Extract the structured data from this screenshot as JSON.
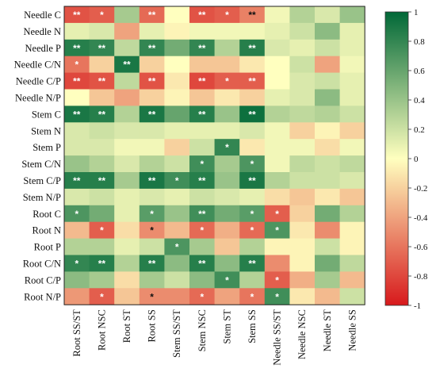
{
  "chart_data": {
    "type": "heatmap",
    "rows": [
      "Needle C",
      "Needle N",
      "Needle P",
      "Needle C/N",
      "Needle C/P",
      "Needle N/P",
      "Stem C",
      "Stem N",
      "Stem P",
      "Stem C/N",
      "Stem C/P",
      "Stem N/P",
      "Root C",
      "Root N",
      "Root P",
      "Root C/N",
      "Root C/P",
      "Root N/P"
    ],
    "columns": [
      "Root SS/ST",
      "Root NSC",
      "Root ST",
      "Root SS",
      "Stem SS/ST",
      "Stem NSC",
      "Stem ST",
      "Stem SS",
      "Needle SS/ST",
      "Needle NSC",
      "Needle ST",
      "Needle SS"
    ],
    "values": [
      [
        -0.75,
        -0.7,
        0.35,
        -0.65,
        0.0,
        -0.75,
        -0.7,
        -0.55,
        0.05,
        0.3,
        0.15,
        0.4
      ],
      [
        0.1,
        0.15,
        -0.4,
        0.1,
        -0.05,
        0.05,
        0.05,
        0.05,
        0.1,
        0.2,
        0.45,
        0.1
      ],
      [
        0.85,
        0.8,
        0.25,
        0.8,
        0.55,
        0.8,
        0.3,
        0.85,
        0.15,
        0.1,
        0.2,
        0.1
      ],
      [
        -0.6,
        -0.2,
        0.9,
        -0.2,
        0.0,
        -0.25,
        -0.25,
        -0.1,
        0.0,
        0.2,
        -0.4,
        0.05
      ],
      [
        -0.8,
        -0.75,
        0.25,
        -0.75,
        -0.1,
        -0.8,
        -0.7,
        -0.7,
        0.0,
        0.15,
        0.2,
        0.1
      ],
      [
        0.0,
        -0.25,
        -0.4,
        -0.2,
        -0.05,
        -0.25,
        -0.1,
        -0.2,
        0.1,
        0.15,
        0.45,
        0.1
      ],
      [
        0.9,
        0.85,
        0.3,
        0.9,
        0.6,
        0.85,
        0.4,
        0.95,
        0.3,
        0.25,
        0.3,
        0.2
      ],
      [
        0.15,
        0.2,
        0.15,
        0.15,
        0.1,
        0.1,
        0.1,
        0.15,
        0.05,
        -0.2,
        -0.05,
        -0.2
      ],
      [
        0.15,
        0.15,
        0.05,
        0.05,
        -0.2,
        0.2,
        0.8,
        -0.1,
        0.05,
        0.05,
        -0.15,
        0.05
      ],
      [
        0.4,
        0.3,
        0.15,
        0.3,
        0.2,
        0.75,
        0.35,
        0.7,
        0.05,
        0.25,
        0.2,
        0.25
      ],
      [
        0.85,
        0.85,
        0.35,
        0.9,
        0.75,
        0.85,
        0.4,
        0.9,
        0.3,
        0.2,
        0.2,
        0.15
      ],
      [
        0.15,
        0.2,
        0.1,
        0.15,
        0.1,
        0.2,
        0.15,
        0.1,
        -0.15,
        -0.25,
        -0.1,
        -0.25
      ],
      [
        0.7,
        0.55,
        0.1,
        0.65,
        0.4,
        0.75,
        0.55,
        0.65,
        -0.7,
        -0.2,
        0.55,
        0.3
      ],
      [
        -0.3,
        -0.7,
        -0.15,
        -0.5,
        -0.3,
        -0.65,
        -0.35,
        -0.65,
        0.7,
        -0.1,
        -0.5,
        -0.05
      ],
      [
        0.3,
        0.3,
        0.1,
        0.2,
        0.7,
        0.35,
        -0.25,
        0.3,
        -0.05,
        -0.05,
        0.2,
        -0.05
      ],
      [
        0.8,
        0.85,
        0.3,
        0.85,
        0.45,
        0.85,
        0.45,
        0.85,
        -0.5,
        -0.05,
        0.55,
        0.25
      ],
      [
        0.45,
        0.35,
        -0.15,
        0.35,
        0.2,
        0.45,
        0.75,
        0.3,
        -0.7,
        -0.35,
        0.35,
        -0.3
      ],
      [
        -0.45,
        -0.7,
        -0.25,
        -0.5,
        -0.5,
        -0.65,
        -0.4,
        -0.6,
        0.75,
        -0.1,
        -0.3,
        0.2
      ]
    ],
    "significance": [
      [
        "**",
        "*",
        "",
        "**",
        "",
        "**",
        "*",
        "**",
        "",
        "",
        "",
        ""
      ],
      [
        "",
        "",
        "",
        "",
        "",
        "",
        "",
        "",
        "",
        "",
        "",
        ""
      ],
      [
        "**",
        "**",
        "",
        "**",
        "",
        "**",
        "",
        "**",
        "",
        "",
        "",
        ""
      ],
      [
        "*",
        "",
        "**",
        "",
        "",
        "",
        "",
        "",
        "",
        "",
        "",
        ""
      ],
      [
        "**",
        "**",
        "",
        "**",
        "",
        "**",
        "*",
        "**",
        "",
        "",
        "",
        ""
      ],
      [
        "",
        "",
        "",
        "",
        "",
        "",
        "",
        "",
        "",
        "",
        "",
        ""
      ],
      [
        "**",
        "**",
        "",
        "**",
        "",
        "**",
        "",
        "**",
        "",
        "",
        "",
        ""
      ],
      [
        "",
        "",
        "",
        "",
        "",
        "",
        "",
        "",
        "",
        "",
        "",
        ""
      ],
      [
        "",
        "",
        "",
        "",
        "",
        "",
        "*",
        "",
        "",
        "",
        "",
        ""
      ],
      [
        "",
        "",
        "",
        "",
        "",
        "*",
        "",
        "*",
        "",
        "",
        "",
        ""
      ],
      [
        "**",
        "**",
        "",
        "**",
        "*",
        "**",
        "",
        "**",
        "",
        "",
        "",
        ""
      ],
      [
        "",
        "",
        "",
        "",
        "",
        "",
        "",
        "",
        "",
        "",
        "",
        ""
      ],
      [
        "*",
        "",
        "",
        "*",
        "",
        "**",
        "",
        "*",
        "*",
        "",
        "",
        ""
      ],
      [
        "",
        "*",
        "",
        "*",
        "",
        "*",
        "",
        "*",
        "*",
        "",
        "",
        ""
      ],
      [
        "",
        "",
        "",
        "",
        "*",
        "",
        "",
        "",
        "",
        "",
        "",
        ""
      ],
      [
        "*",
        "**",
        "",
        "**",
        "",
        "**",
        "",
        "**",
        "",
        "",
        "",
        ""
      ],
      [
        "",
        "",
        "",
        "",
        "",
        "",
        "*",
        "",
        "*",
        "",
        "",
        ""
      ],
      [
        "",
        "*",
        "",
        "*",
        "",
        "*",
        "",
        "*",
        "*",
        "",
        "",
        ""
      ]
    ],
    "colorbar": {
      "min": -1,
      "max": 1,
      "ticks": [
        "1",
        "0.8",
        "0.6",
        "0.4",
        "0.2",
        "0",
        "-0.2",
        "-0.4",
        "-0.6",
        "-0.8",
        "-1"
      ]
    },
    "colors": {
      "low": "#d7191c",
      "mid": "#ffffbf",
      "high": "#006837"
    }
  }
}
